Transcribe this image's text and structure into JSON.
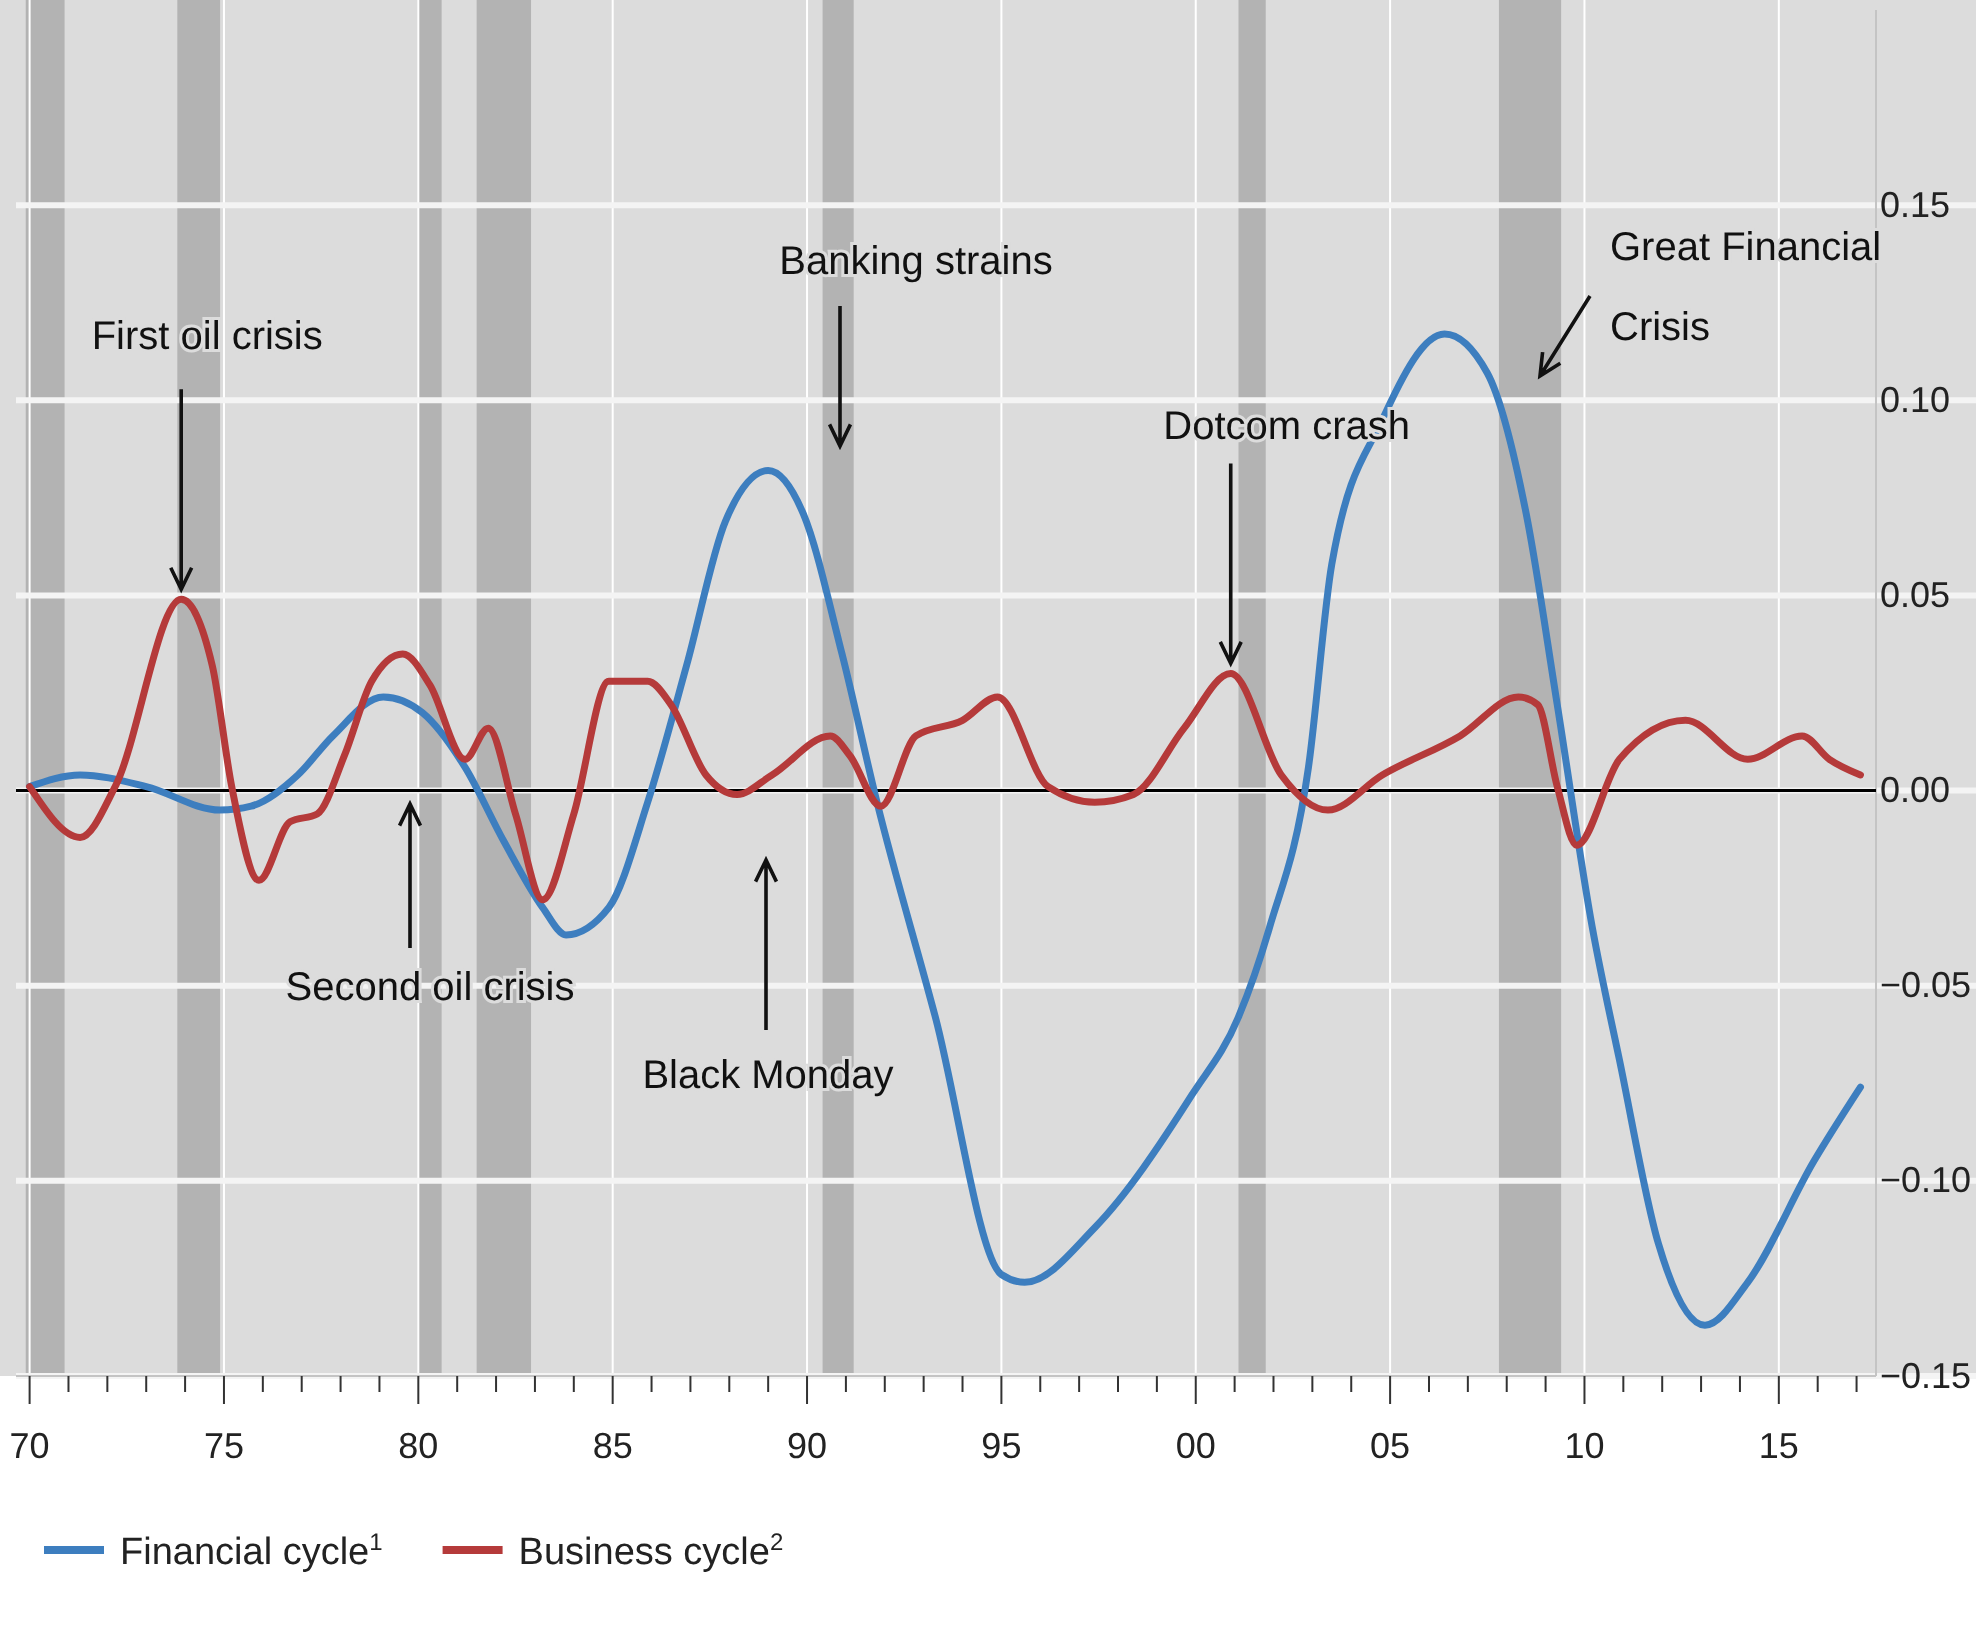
{
  "chart_data": {
    "type": "line",
    "xlim": [
      1969.65,
      2017.5
    ],
    "xticks": [
      {
        "value": 1970,
        "label": "70"
      },
      {
        "value": 1971,
        "label": null
      },
      {
        "value": 1972,
        "label": null
      },
      {
        "value": 1973,
        "label": null
      },
      {
        "value": 1974,
        "label": null
      },
      {
        "value": 1975,
        "label": "75"
      },
      {
        "value": 1976,
        "label": null
      },
      {
        "value": 1977,
        "label": null
      },
      {
        "value": 1978,
        "label": null
      },
      {
        "value": 1979,
        "label": null
      },
      {
        "value": 1980,
        "label": "80"
      },
      {
        "value": 1981,
        "label": null
      },
      {
        "value": 1982,
        "label": null
      },
      {
        "value": 1983,
        "label": null
      },
      {
        "value": 1984,
        "label": null
      },
      {
        "value": 1985,
        "label": "85"
      },
      {
        "value": 1986,
        "label": null
      },
      {
        "value": 1987,
        "label": null
      },
      {
        "value": 1988,
        "label": null
      },
      {
        "value": 1989,
        "label": null
      },
      {
        "value": 1990,
        "label": "90"
      },
      {
        "value": 1991,
        "label": null
      },
      {
        "value": 1992,
        "label": null
      },
      {
        "value": 1993,
        "label": null
      },
      {
        "value": 1994,
        "label": null
      },
      {
        "value": 1995,
        "label": "95"
      },
      {
        "value": 1996,
        "label": null
      },
      {
        "value": 1997,
        "label": null
      },
      {
        "value": 1998,
        "label": null
      },
      {
        "value": 1999,
        "label": null
      },
      {
        "value": 2000,
        "label": "00"
      },
      {
        "value": 2001,
        "label": null
      },
      {
        "value": 2002,
        "label": null
      },
      {
        "value": 2003,
        "label": null
      },
      {
        "value": 2004,
        "label": null
      },
      {
        "value": 2005,
        "label": "05"
      },
      {
        "value": 2006,
        "label": null
      },
      {
        "value": 2007,
        "label": null
      },
      {
        "value": 2008,
        "label": null
      },
      {
        "value": 2009,
        "label": null
      },
      {
        "value": 2010,
        "label": "10"
      },
      {
        "value": 2011,
        "label": null
      },
      {
        "value": 2012,
        "label": null
      },
      {
        "value": 2013,
        "label": null
      },
      {
        "value": 2014,
        "label": null
      },
      {
        "value": 2015,
        "label": "15"
      },
      {
        "value": 2016,
        "label": null
      },
      {
        "value": 2017,
        "label": null
      }
    ],
    "ylim": [
      -0.15,
      0.2
    ],
    "yticks": [
      {
        "value": -0.15,
        "label": "−0.15"
      },
      {
        "value": -0.1,
        "label": "−0.10"
      },
      {
        "value": -0.05,
        "label": "−0.05"
      },
      {
        "value": 0,
        "label": "0.00"
      },
      {
        "value": 0.05,
        "label": "0.05"
      },
      {
        "value": 0.1,
        "label": "0.10"
      },
      {
        "value": 0.15,
        "label": "0.15"
      }
    ],
    "grid": true,
    "legend": "bottom left",
    "series": [
      {
        "name": "Financial cycle$^{1}$",
        "color": "#3d7ebf",
        "x": [
          1970.0,
          1971.3,
          1973.0,
          1974.9,
          1975.7,
          1976.9,
          1977.8,
          1979.1,
          1980.1,
          1981.2,
          1982.2,
          1983.2,
          1983.8,
          1984.9,
          1985.9,
          1986.9,
          1987.9,
          1989.0,
          1989.9,
          1990.9,
          1991.8,
          1993.3,
          1995.0,
          1995.6,
          1997.4,
          1999.9,
          2001.1,
          2001.9,
          2002.9,
          2003.5,
          2004.8,
          2006.4,
          2007.5,
          2008.5,
          2009.3,
          2010.2,
          2010.9,
          2011.9,
          2013.1,
          2014.2,
          2015.9,
          2017.1
        ],
        "values": [
          0.001,
          0.004,
          0.001,
          -0.005,
          -0.004,
          0.004,
          0.014,
          0.024,
          0.02,
          0.006,
          -0.013,
          -0.03,
          -0.037,
          -0.03,
          -0.003,
          0.032,
          0.069,
          0.082,
          0.071,
          0.035,
          -0.003,
          -0.058,
          -0.124,
          -0.126,
          -0.112,
          -0.078,
          -0.058,
          -0.035,
          0.006,
          0.058,
          0.095,
          0.117,
          0.107,
          0.071,
          0.022,
          -0.035,
          -0.069,
          -0.116,
          -0.137,
          -0.126,
          -0.095,
          -0.076
        ]
      },
      {
        "name": "Business cycle$^{2}$",
        "color": "#b53a3a",
        "x": [
          1970.0,
          1971.3,
          1972.2,
          1973.9,
          1974.7,
          1975.2,
          1975.9,
          1976.7,
          1977.4,
          1978.1,
          1978.8,
          1979.6,
          1980.3,
          1981.2,
          1981.8,
          1982.5,
          1983.2,
          1984.0,
          1984.9,
          1985.9,
          1986.5,
          1987.4,
          1988.2,
          1989.1,
          1990.6,
          1991.1,
          1991.9,
          1992.8,
          1994.0,
          1994.9,
          1996.2,
          1997.4,
          1998.4,
          1999.7,
          2000.9,
          2002.2,
          2003.4,
          2004.8,
          2006.8,
          2008.3,
          2008.8,
          2009.3,
          2009.8,
          2010.9,
          2012.6,
          2014.2,
          2015.6,
          2016.3,
          2017.1
        ],
        "values": [
          0.001,
          -0.012,
          0.001,
          0.049,
          0.032,
          0.001,
          -0.023,
          -0.008,
          -0.006,
          0.009,
          0.028,
          0.035,
          0.027,
          0.008,
          0.016,
          -0.006,
          -0.028,
          -0.006,
          0.028,
          0.028,
          0.022,
          0.004,
          -0.001,
          0.004,
          0.014,
          0.009,
          -0.004,
          0.014,
          0.018,
          0.024,
          0.001,
          -0.003,
          -0.001,
          0.016,
          0.03,
          0.004,
          -0.005,
          0.004,
          0.014,
          0.024,
          0.022,
          0.001,
          -0.014,
          0.008,
          0.018,
          0.008,
          0.014,
          0.008,
          0.004
        ]
      }
    ],
    "ref_lines": [
      {
        "axis": "y",
        "value": 0,
        "color": "#000000"
      }
    ],
    "bands": [
      {
        "axis": "x",
        "from": 1969.9,
        "to": 1970.9,
        "color": "#b3b3b3"
      },
      {
        "axis": "x",
        "from": 1973.8,
        "to": 1974.9,
        "color": "#b3b3b3"
      },
      {
        "axis": "x",
        "from": 1980.0,
        "to": 1980.6,
        "color": "#b3b3b3"
      },
      {
        "axis": "x",
        "from": 1981.5,
        "to": 1982.9,
        "color": "#b3b3b3"
      },
      {
        "axis": "x",
        "from": 1990.4,
        "to": 1991.2,
        "color": "#b3b3b3"
      },
      {
        "axis": "x",
        "from": 2001.1,
        "to": 2001.8,
        "color": "#b3b3b3"
      },
      {
        "axis": "x",
        "from": 2007.8,
        "to": 2009.4,
        "color": "#b3b3b3"
      }
    ],
    "annotations": [
      {
        "text": "First oil crisis",
        "x": 1973.9,
        "y": 0.049
      },
      "Second oil crisis",
      "Black Monday",
      "Banking strains",
      {
        "text": "Dotcom crash",
        "x": 2000.9,
        "y": 0.03
      },
      "Great Financial Crisis"
    ]
  }
}
